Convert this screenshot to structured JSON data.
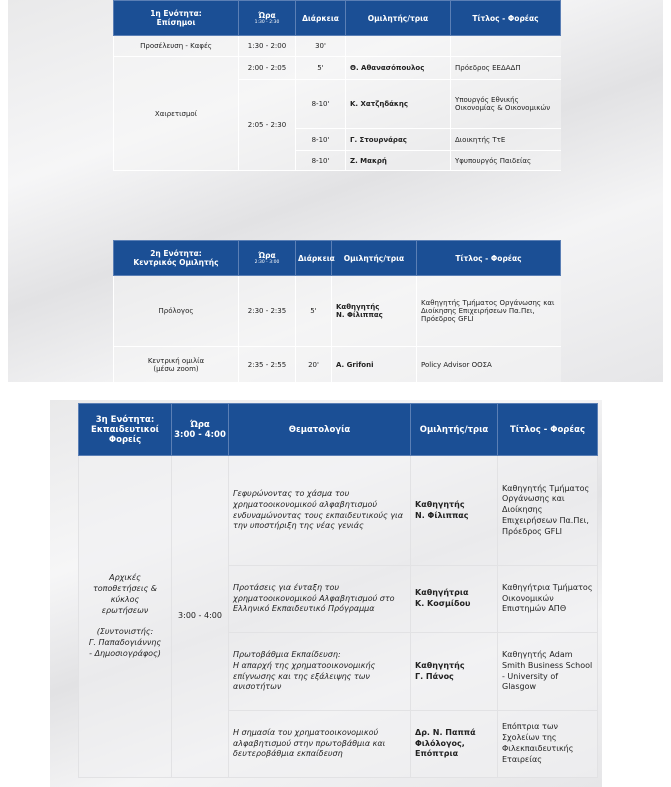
{
  "colors": {
    "header": "#1b4f95"
  },
  "section1": {
    "headers": {
      "section": "1η Ενότητα:\nΕπίσημοι",
      "time": "Ώρα",
      "time_range": "1:30 - 2:30",
      "duration": "Διάρκεια",
      "speaker": "Ομιλητής/τρια",
      "title": "Τίτλος - Φορέας"
    },
    "arrival": {
      "label": "Προσέλευση - Καφές",
      "time": "1:30 - 2:00",
      "duration": "30'"
    },
    "greetings_label": "Χαιρετισμοί",
    "rows": [
      {
        "time": "2:00 - 2:05",
        "duration": "5'",
        "speaker": "Θ. Αθανασόπουλος",
        "title": "Πρόεδρος ΕΕΔΑΔΠ"
      },
      {
        "time": "2:05 - 2:30",
        "duration": "8-10'",
        "speaker": "Κ. Χατζηδάκης",
        "title": "Υπουργός Εθνικής Οικονομίας & Οικονομικών"
      },
      {
        "duration": "8-10'",
        "speaker": "Γ. Στουρνάρας",
        "title": "Διοικητής ΤτΕ"
      },
      {
        "duration": "8-10'",
        "speaker": "Ζ. Μακρή",
        "title": "Υφυπουργός Παιδείας"
      }
    ]
  },
  "section2": {
    "headers": {
      "section": "2η Ενότητα:\nΚεντρικός Ομιλητής",
      "time": "Ώρα",
      "time_range": "2:30 - 3:00",
      "duration": "Διάρκεια",
      "speaker": "Ομιλητής/τρια",
      "title": "Τίτλος - Φορέας"
    },
    "rows": [
      {
        "label": "Πρόλογος",
        "time": "2:30 - 2:35",
        "duration": "5'",
        "speaker": "Καθηγητής\nΝ. Φίλιππας",
        "title": "Καθηγητής Τμήματος Οργάνωσης και Διοίκησης Επιχειρήσεων Πα.Πει, Πρόεδρος GFLI"
      },
      {
        "label": "Κεντρική ομιλία\n(μέσω zoom)",
        "time": "2:35 - 2:55",
        "duration": "20'",
        "speaker": "A. Grifoni",
        "title": "Policy Advisor ΟΟΣΑ"
      }
    ]
  },
  "section3": {
    "headers": {
      "section": "3η Ενότητα:\nΕκπαιδευτικοί\nΦορείς",
      "time": "Ώρα\n3:00 - 4:00",
      "topic": "Θεματολογία",
      "speaker": "Ομιλητής/τρια",
      "title": "Τίτλος - Φορέας"
    },
    "label": "Αρχικές\nτοποθετήσεις &\nκύκλος\nερωτήσεων\n\n(Συντονιστής:\nΓ. Παπαδογιάννης\n- Δημοσιογράφος)",
    "time": "3:00 - 4:00",
    "rows": [
      {
        "topic": "Γεφυρώνοντας το χάσμα του χρηματοοικονομικού αλφαβητισμού ενδυναμώνοντας τους εκπαιδευτικούς για την υποστήριξη της νέας γενιάς",
        "speaker": "Καθηγητής\nΝ. Φίλιππας",
        "title": "Καθηγητής Τμήματος Οργάνωσης και Διοίκησης Επιχειρήσεων Πα.Πει, Πρόεδρος GFLI"
      },
      {
        "topic": "Προτάσεις για ένταξη του χρηματοοικονομικού Αλφαβητισμού στο Ελληνικό Εκπαιδευτικό Πρόγραμμα",
        "speaker": "Καθηγήτρια\nΚ. Κοσμίδου",
        "title": "Καθηγήτρια Τμήματος Οικονομικών Επιστημών ΑΠΘ"
      },
      {
        "topic": "Πρωτοβάθμια Εκπαίδευση:\nΗ απαρχή της χρηματοοικονομικής επίγνωσης και της εξάλειψης των ανισοτήτων",
        "speaker": "Καθηγητής\nΓ. Πάνος",
        "title": "Καθηγητής Adam Smith Business School - University of Glasgow"
      },
      {
        "topic": "Η σημασία του χρηματοοικονομικού αλφαβητισμού στην πρωτοβάθμια και δευτεροβάθμια εκπαίδευση",
        "speaker": "Δρ. Ν. Παππά\nΦιλόλογος, Επόπτρια",
        "title": "Επόπτρια των Σχολείων της Φιλεκπαιδευτικής Εταιρείας"
      }
    ]
  }
}
